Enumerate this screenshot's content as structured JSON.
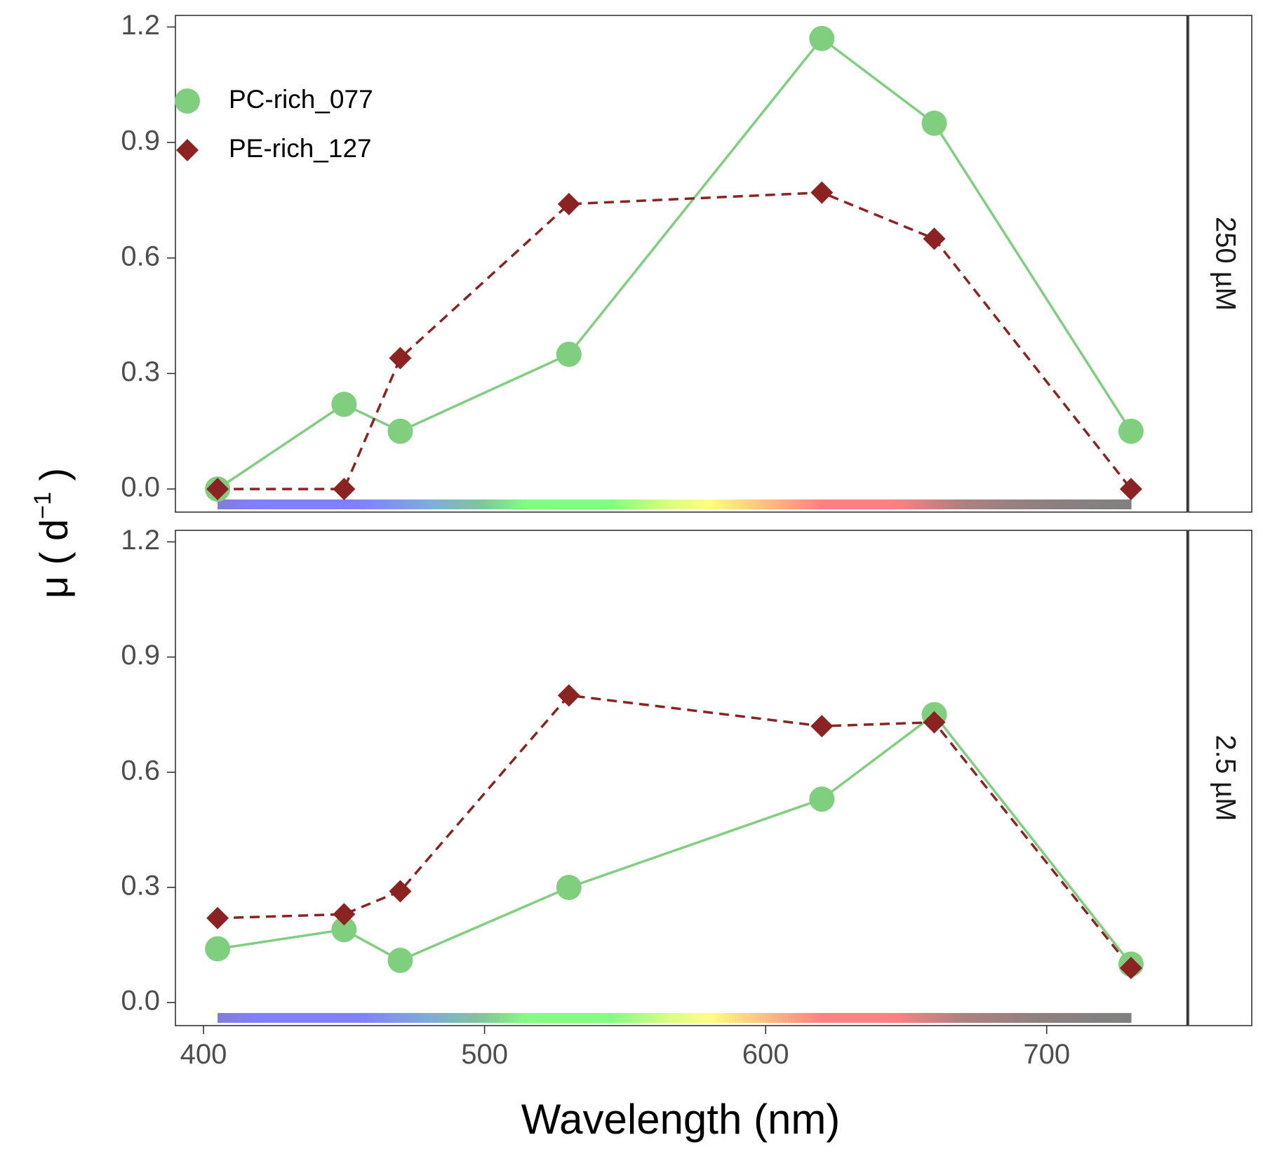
{
  "chart_data": {
    "type": "line",
    "ylabel": "μ ( d",
    "ylabel_superscript": "−1",
    "ylabel_close": " )",
    "xlabel": "Wavelength (nm)",
    "xlim": [
      390,
      750
    ],
    "ylim": [
      -0.06,
      1.23
    ],
    "x_ticks": [
      400,
      500,
      600,
      700
    ],
    "x_tick_labels": [
      "400",
      "500",
      "600",
      "700"
    ],
    "y_ticks": [
      0.0,
      0.3,
      0.6,
      0.9,
      1.2
    ],
    "y_tick_labels": [
      "0.0",
      "0.3",
      "0.6",
      "0.9",
      "1.2"
    ],
    "grid": false,
    "legend": {
      "position": "top-left (inside top panel)"
    },
    "spectrum_bar": {
      "x_start": 405,
      "x_end": 730
    },
    "series_styles": [
      {
        "name": "PC-rich_077",
        "color": "#7fcf7f",
        "marker": "circle",
        "line": "solid"
      },
      {
        "name": "PE-rich_127",
        "color": "#8b2323",
        "marker": "diamond",
        "line": "dashed"
      }
    ],
    "panels": [
      {
        "facet_label": "250 µM",
        "series": [
          {
            "name": "PC-rich_077",
            "x": [
              405,
              450,
              470,
              530,
              620,
              660,
              730
            ],
            "y": [
              0.0,
              0.22,
              0.15,
              0.35,
              1.17,
              0.95,
              0.15
            ]
          },
          {
            "name": "PE-rich_127",
            "x": [
              405,
              450,
              470,
              530,
              620,
              660,
              730
            ],
            "y": [
              0.0,
              0.0,
              0.34,
              0.74,
              0.77,
              0.65,
              0.0
            ]
          }
        ]
      },
      {
        "facet_label": "2.5 µM",
        "series": [
          {
            "name": "PC-rich_077",
            "x": [
              405,
              450,
              470,
              530,
              620,
              660,
              730
            ],
            "y": [
              0.14,
              0.19,
              0.11,
              0.3,
              0.53,
              0.75,
              0.1
            ]
          },
          {
            "name": "PE-rich_127",
            "x": [
              405,
              450,
              470,
              530,
              620,
              660,
              730
            ],
            "y": [
              0.22,
              0.23,
              0.29,
              0.8,
              0.72,
              0.73,
              0.09
            ]
          }
        ]
      }
    ]
  }
}
